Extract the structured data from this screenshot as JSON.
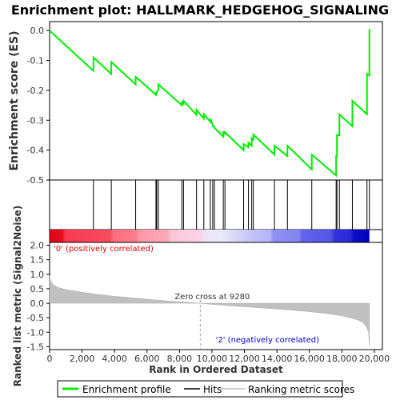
{
  "chart_data": [
    {
      "type": "line",
      "title": "Enrichment plot: HALLMARK_HEDGEHOG_SIGNALING",
      "ylabel": "Enrichment score (ES)",
      "xlim": [
        0,
        20000
      ],
      "ylim": [
        -0.5,
        0.03
      ],
      "yticks": [
        0.0,
        -0.1,
        -0.2,
        -0.3,
        -0.4,
        -0.5
      ],
      "ytick_labels": [
        "0.0",
        "-0.1",
        "-0.2",
        "-0.3",
        "-0.4",
        "-0.5"
      ],
      "series": [
        {
          "name": "Enrichment profile",
          "color": "#00ee00",
          "x": [
            0,
            2700,
            2700,
            3800,
            3800,
            5300,
            5300,
            6550,
            6550,
            6600,
            6600,
            6700,
            6700,
            8150,
            8150,
            8250,
            8250,
            9050,
            9050,
            9500,
            9500,
            9900,
            9900,
            10050,
            10050,
            10150,
            10150,
            10700,
            10700,
            10800,
            10800,
            11950,
            11950,
            12250,
            12250,
            12450,
            12450,
            12550,
            12550,
            13850,
            13850,
            14650,
            14650,
            16150,
            16150,
            17650,
            17650,
            17700,
            17700,
            17850,
            17850,
            18650,
            18650,
            19550,
            19550,
            19700,
            19700
          ],
          "y": [
            0.0,
            -0.135,
            -0.09,
            -0.145,
            -0.105,
            -0.18,
            -0.155,
            -0.215,
            -0.205,
            -0.215,
            -0.205,
            -0.198,
            -0.18,
            -0.25,
            -0.24,
            -0.245,
            -0.235,
            -0.282,
            -0.265,
            -0.295,
            -0.28,
            -0.305,
            -0.295,
            -0.315,
            -0.32,
            -0.322,
            -0.325,
            -0.355,
            -0.34,
            -0.345,
            -0.34,
            -0.4,
            -0.38,
            -0.39,
            -0.375,
            -0.385,
            -0.36,
            -0.365,
            -0.348,
            -0.415,
            -0.385,
            -0.42,
            -0.385,
            -0.465,
            -0.415,
            -0.485,
            -0.42,
            -0.42,
            -0.35,
            -0.35,
            -0.28,
            -0.32,
            -0.235,
            -0.28,
            -0.145,
            -0.15,
            0.005
          ]
        }
      ]
    },
    {
      "type": "scatter",
      "ylabel": "",
      "series": [
        {
          "name": "Hits",
          "color": "#000000",
          "x": [
            2700,
            3800,
            5300,
            6550,
            6600,
            6700,
            8150,
            8250,
            9050,
            9500,
            9900,
            10050,
            10150,
            10700,
            10800,
            11950,
            12250,
            12450,
            12550,
            13850,
            14650,
            16150,
            17650,
            17700,
            17850,
            18650,
            19550,
            19700
          ]
        }
      ]
    },
    {
      "type": "area",
      "xlabel": "Rank in Ordered Dataset",
      "ylabel": "Ranked list metric (Signal2Noise)",
      "xlim": [
        0,
        20500
      ],
      "ylim": [
        -1.6,
        2.1
      ],
      "yticks": [
        2.0,
        1.5,
        1.0,
        0.5,
        0.0,
        -0.5,
        -1.0,
        -1.5
      ],
      "ytick_labels": [
        "2.0",
        "1.5",
        "1.0",
        "0.5",
        "0.0",
        "-0.5",
        "-1.0",
        "-1.5"
      ],
      "xticks": [
        0,
        2000,
        4000,
        6000,
        8000,
        10000,
        12000,
        14000,
        16000,
        18000,
        20000
      ],
      "xtick_labels": [
        "0",
        "2,000",
        "4,000",
        "6,000",
        "8,000",
        "10,000",
        "12,000",
        "14,000",
        "16,000",
        "18,000",
        "20,000"
      ],
      "series": [
        {
          "name": "Ranking metric scores",
          "color": "#c0c0c0",
          "x": [
            0,
            50,
            200,
            500,
            1000,
            2000,
            3000,
            4000,
            5000,
            6000,
            7000,
            8000,
            9280,
            10000,
            11000,
            12000,
            13000,
            14000,
            15000,
            16000,
            17000,
            18000,
            18500,
            19000,
            19300,
            19500,
            19650,
            19700
          ],
          "y": [
            0.95,
            0.8,
            0.65,
            0.55,
            0.47,
            0.38,
            0.3,
            0.24,
            0.19,
            0.14,
            0.09,
            0.05,
            0.0,
            -0.04,
            -0.08,
            -0.12,
            -0.16,
            -0.2,
            -0.24,
            -0.29,
            -0.35,
            -0.43,
            -0.5,
            -0.58,
            -0.66,
            -0.8,
            -1.0,
            -1.5
          ]
        }
      ],
      "annotations": {
        "zero_cross": "Zero cross at 9280",
        "zero_cross_x": 9280,
        "positive": "'0' (positively correlated)",
        "negative": "'2' (negatively correlated)"
      }
    }
  ],
  "legend": {
    "items": [
      {
        "label": "Enrichment profile",
        "color": "#00ee00"
      },
      {
        "label": "Hits",
        "color": "#000000"
      },
      {
        "label": "Ranking metric scores",
        "color": "#c0c0c0"
      }
    ]
  }
}
